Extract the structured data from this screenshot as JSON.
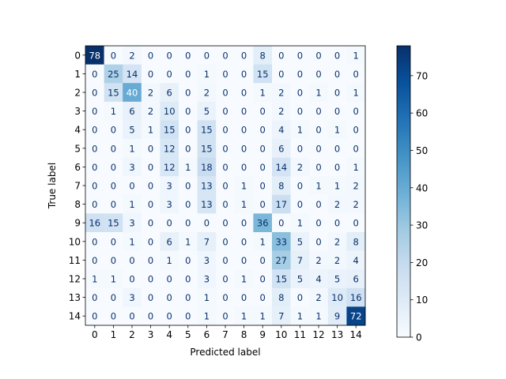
{
  "chart_data": {
    "type": "heatmap",
    "xlabel": "Predicted label",
    "ylabel": "True label",
    "x_categories": [
      "0",
      "1",
      "2",
      "3",
      "4",
      "5",
      "6",
      "7",
      "8",
      "9",
      "10",
      "11",
      "12",
      "13",
      "14"
    ],
    "y_categories": [
      "0",
      "1",
      "2",
      "3",
      "4",
      "5",
      "6",
      "7",
      "8",
      "9",
      "10",
      "11",
      "12",
      "13",
      "14"
    ],
    "values": [
      [
        78,
        0,
        2,
        0,
        0,
        0,
        0,
        0,
        0,
        8,
        0,
        0,
        0,
        0,
        1
      ],
      [
        0,
        25,
        14,
        0,
        0,
        0,
        1,
        0,
        0,
        15,
        0,
        0,
        0,
        0,
        0
      ],
      [
        0,
        15,
        40,
        2,
        6,
        0,
        2,
        0,
        0,
        1,
        2,
        0,
        1,
        0,
        1
      ],
      [
        0,
        1,
        6,
        2,
        10,
        0,
        5,
        0,
        0,
        0,
        2,
        0,
        0,
        0,
        0
      ],
      [
        0,
        0,
        5,
        1,
        15,
        0,
        15,
        0,
        0,
        0,
        4,
        1,
        0,
        1,
        0
      ],
      [
        0,
        0,
        1,
        0,
        12,
        0,
        15,
        0,
        0,
        0,
        6,
        0,
        0,
        0,
        0
      ],
      [
        0,
        0,
        3,
        0,
        12,
        1,
        18,
        0,
        0,
        0,
        14,
        2,
        0,
        0,
        1
      ],
      [
        0,
        0,
        0,
        0,
        3,
        0,
        13,
        0,
        1,
        0,
        8,
        0,
        1,
        1,
        2
      ],
      [
        0,
        0,
        1,
        0,
        3,
        0,
        13,
        0,
        1,
        0,
        17,
        0,
        0,
        2,
        2
      ],
      [
        16,
        15,
        3,
        0,
        0,
        0,
        0,
        0,
        0,
        36,
        0,
        1,
        0,
        0,
        0
      ],
      [
        0,
        0,
        1,
        0,
        6,
        1,
        7,
        0,
        0,
        1,
        33,
        5,
        0,
        2,
        8
      ],
      [
        0,
        0,
        0,
        0,
        1,
        0,
        3,
        0,
        0,
        0,
        27,
        7,
        2,
        2,
        4
      ],
      [
        1,
        1,
        0,
        0,
        0,
        0,
        3,
        0,
        1,
        0,
        15,
        5,
        4,
        5,
        6
      ],
      [
        0,
        0,
        3,
        0,
        0,
        0,
        1,
        0,
        0,
        0,
        8,
        0,
        2,
        10,
        16
      ],
      [
        0,
        0,
        0,
        0,
        0,
        0,
        1,
        0,
        1,
        1,
        7,
        1,
        1,
        9,
        72
      ]
    ],
    "colormap": "Blues",
    "vmin": 0,
    "vmax": 78,
    "colorbar_ticks": [
      0,
      10,
      20,
      30,
      40,
      50,
      60,
      70
    ],
    "grid": false
  }
}
